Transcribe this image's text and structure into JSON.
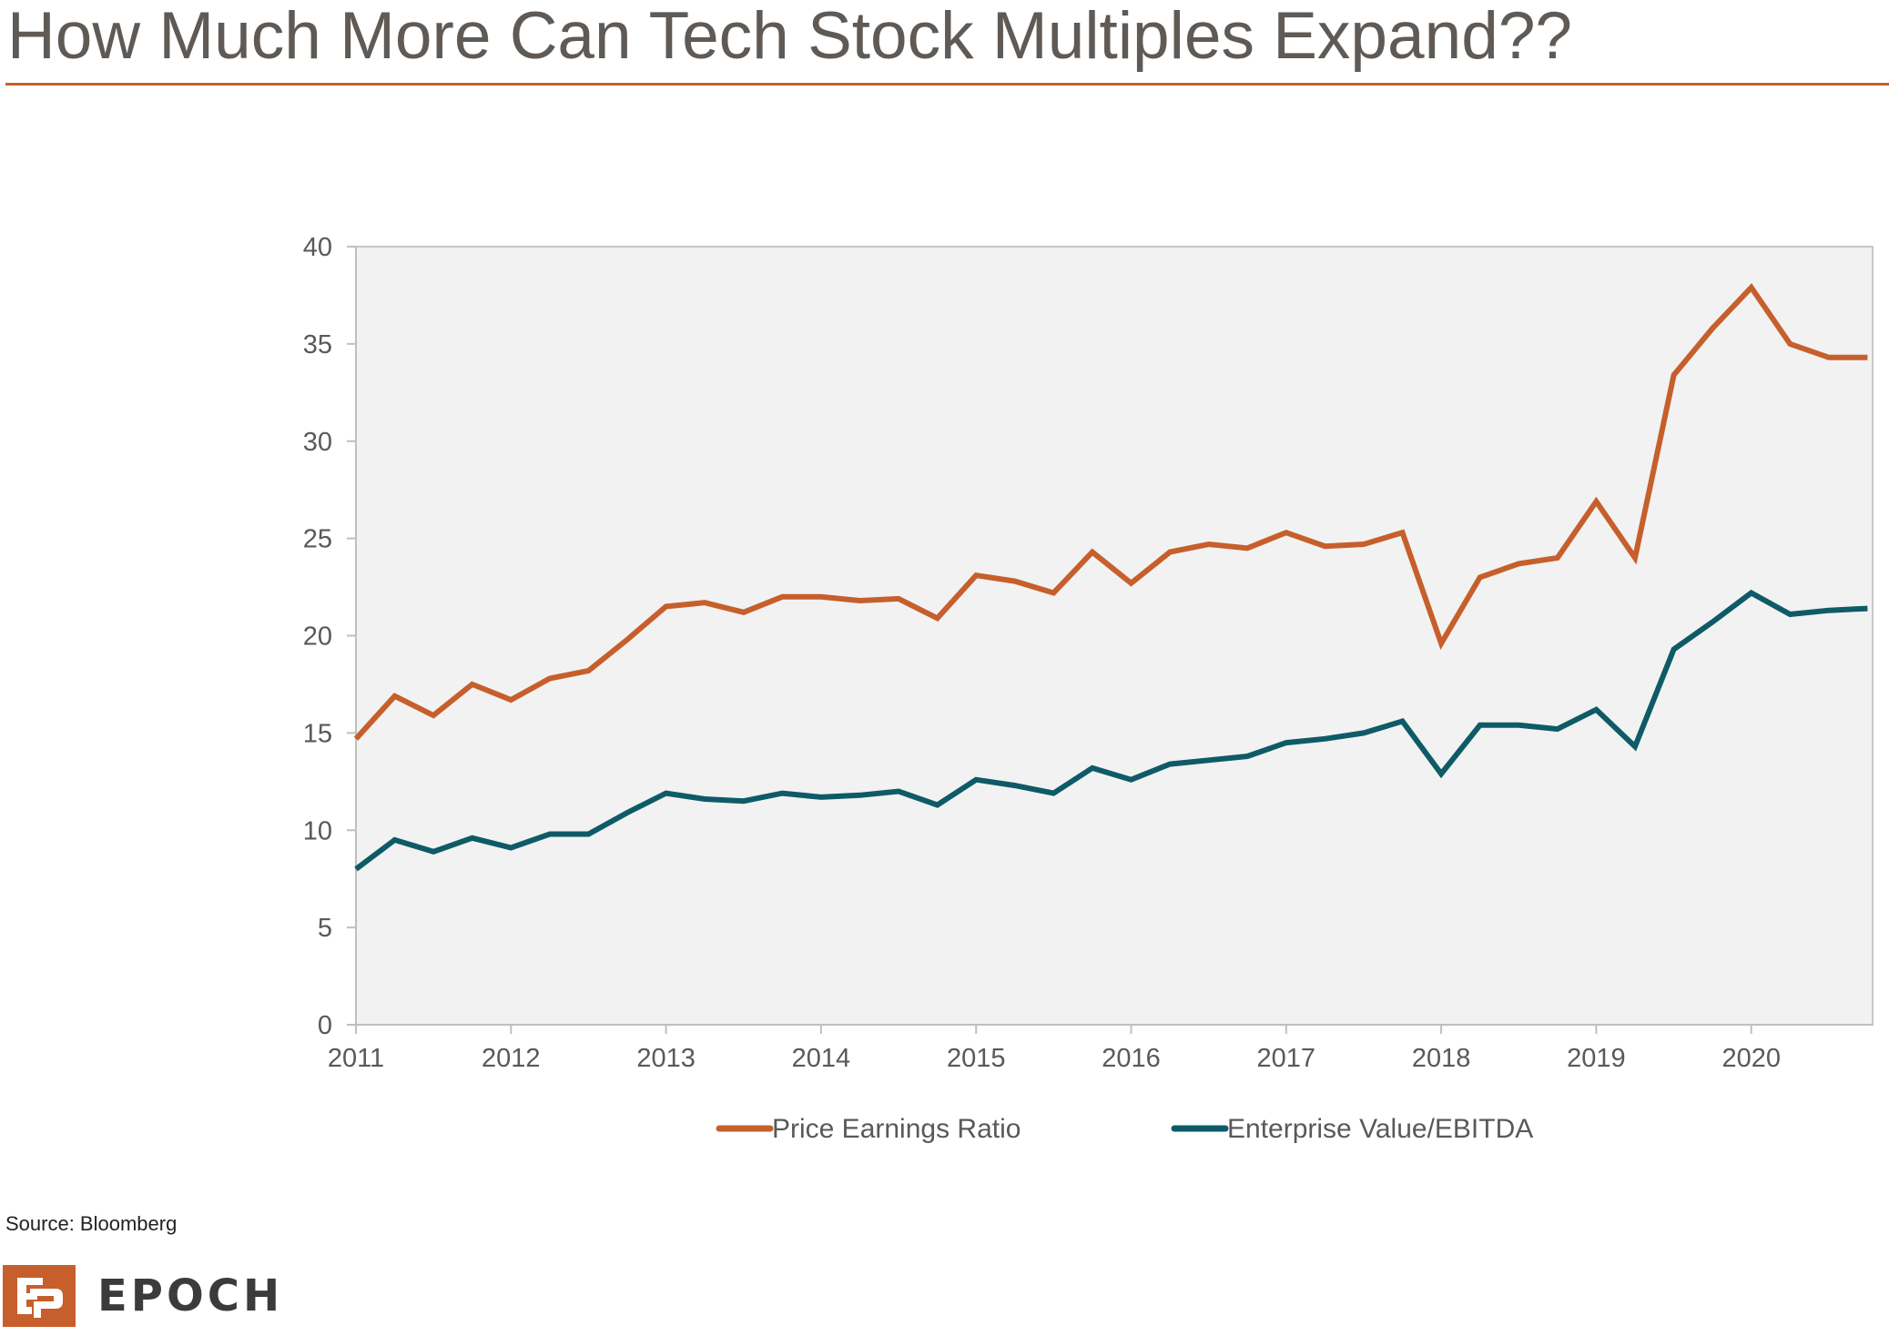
{
  "slide": {
    "title": "How Much More Can Tech Stock Multiples Expand??",
    "source": "Source: Bloomberg",
    "logo_text": "EPOCH",
    "accent_color": "#c65f2c"
  },
  "chart_data": {
    "type": "line",
    "title": "How Much More Can Tech Stock Multiples Expand??",
    "xlabel": "",
    "ylabel": "",
    "x_start": 2011.0,
    "x_step": 0.25,
    "xlim": [
      2011.0,
      2020.75
    ],
    "ylim": [
      0,
      40
    ],
    "yticks": [
      0,
      5,
      10,
      15,
      20,
      25,
      30,
      35,
      40
    ],
    "xtick_labels": [
      "2011",
      "2012",
      "2013",
      "2014",
      "2015",
      "2016",
      "2017",
      "2018",
      "2019",
      "2020"
    ],
    "grid": false,
    "legend_position": "bottom-center",
    "series": [
      {
        "name": "Price Earnings Ratio",
        "color": "#c65f2c",
        "values": [
          14.7,
          16.9,
          15.9,
          17.5,
          16.7,
          17.8,
          18.2,
          19.8,
          21.5,
          21.7,
          21.2,
          22.0,
          22.0,
          21.8,
          21.9,
          20.9,
          23.1,
          22.8,
          22.2,
          24.3,
          22.7,
          24.3,
          24.7,
          24.5,
          25.3,
          24.6,
          24.7,
          25.3,
          19.6,
          23.0,
          23.7,
          24.0,
          26.9,
          24.0,
          33.4,
          35.8,
          37.9,
          35.0,
          34.3,
          34.3
        ]
      },
      {
        "name": "Enterprise Value/EBITDA",
        "color": "#0e5b67",
        "values": [
          8.0,
          9.5,
          8.9,
          9.6,
          9.1,
          9.8,
          9.8,
          10.9,
          11.9,
          11.6,
          11.5,
          11.9,
          11.7,
          11.8,
          12.0,
          11.3,
          12.6,
          12.3,
          11.9,
          13.2,
          12.6,
          13.4,
          13.6,
          13.8,
          14.5,
          14.7,
          15.0,
          15.6,
          12.9,
          15.4,
          15.4,
          15.2,
          16.2,
          14.3,
          19.3,
          20.7,
          22.2,
          21.1,
          21.3,
          21.4
        ]
      }
    ]
  }
}
